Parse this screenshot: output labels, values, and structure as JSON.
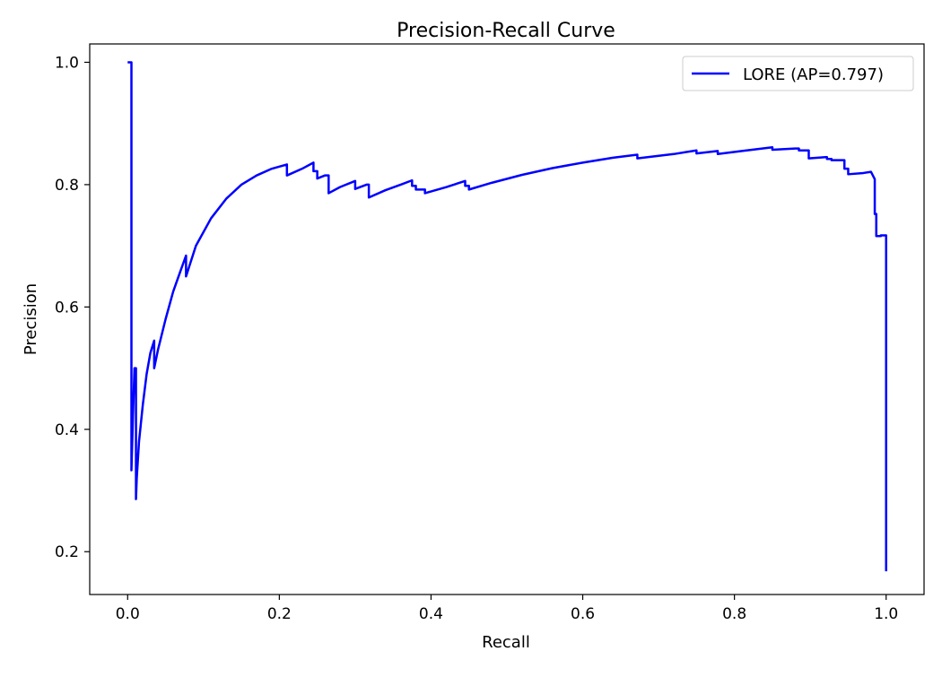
{
  "chart_data": {
    "type": "line",
    "title": "Precision-Recall Curve",
    "xlabel": "Recall",
    "ylabel": "Precision",
    "xlim": [
      -0.05,
      1.05
    ],
    "ylim": [
      0.13,
      1.03
    ],
    "x_ticks": [
      "0.0",
      "0.2",
      "0.4",
      "0.6",
      "0.8",
      "1.0"
    ],
    "y_ticks": [
      "0.2",
      "0.4",
      "0.6",
      "0.8",
      "1.0"
    ],
    "legend_position": "top-right",
    "grid": false,
    "series": [
      {
        "name": "LORE (AP=0.797)",
        "color": "#0000ff",
        "x": [
          0.0,
          0.005,
          0.005,
          0.007,
          0.009,
          0.011,
          0.011,
          0.012,
          0.015,
          0.02,
          0.025,
          0.03,
          0.035,
          0.035,
          0.04,
          0.05,
          0.06,
          0.07,
          0.077,
          0.077,
          0.09,
          0.11,
          0.13,
          0.15,
          0.17,
          0.19,
          0.21,
          0.21,
          0.23,
          0.245,
          0.245,
          0.25,
          0.25,
          0.26,
          0.265,
          0.265,
          0.28,
          0.3,
          0.3,
          0.315,
          0.318,
          0.318,
          0.34,
          0.36,
          0.375,
          0.375,
          0.38,
          0.38,
          0.39,
          0.392,
          0.392,
          0.42,
          0.445,
          0.445,
          0.45,
          0.45,
          0.48,
          0.52,
          0.56,
          0.6,
          0.64,
          0.672,
          0.672,
          0.72,
          0.75,
          0.75,
          0.778,
          0.778,
          0.81,
          0.85,
          0.85,
          0.88,
          0.885,
          0.885,
          0.898,
          0.898,
          0.92,
          0.922,
          0.922,
          0.928,
          0.928,
          0.945,
          0.945,
          0.95,
          0.95,
          0.97,
          0.98,
          0.985,
          0.985,
          0.987,
          0.987,
          0.993,
          0.993,
          1.0,
          1.0
        ],
        "y": [
          1.0,
          1.0,
          0.333,
          0.42,
          0.5,
          0.5,
          0.286,
          0.32,
          0.38,
          0.44,
          0.49,
          0.525,
          0.545,
          0.5,
          0.53,
          0.58,
          0.625,
          0.66,
          0.684,
          0.65,
          0.7,
          0.745,
          0.777,
          0.8,
          0.815,
          0.826,
          0.833,
          0.815,
          0.826,
          0.836,
          0.822,
          0.822,
          0.81,
          0.815,
          0.815,
          0.786,
          0.796,
          0.806,
          0.793,
          0.8,
          0.8,
          0.779,
          0.791,
          0.8,
          0.807,
          0.798,
          0.798,
          0.792,
          0.792,
          0.792,
          0.786,
          0.796,
          0.806,
          0.798,
          0.798,
          0.792,
          0.803,
          0.816,
          0.827,
          0.836,
          0.844,
          0.849,
          0.843,
          0.85,
          0.856,
          0.851,
          0.855,
          0.85,
          0.855,
          0.861,
          0.857,
          0.859,
          0.859,
          0.856,
          0.856,
          0.843,
          0.845,
          0.845,
          0.842,
          0.842,
          0.84,
          0.84,
          0.826,
          0.826,
          0.817,
          0.819,
          0.821,
          0.809,
          0.752,
          0.752,
          0.716,
          0.716,
          0.717,
          0.717,
          0.168
        ]
      }
    ]
  }
}
